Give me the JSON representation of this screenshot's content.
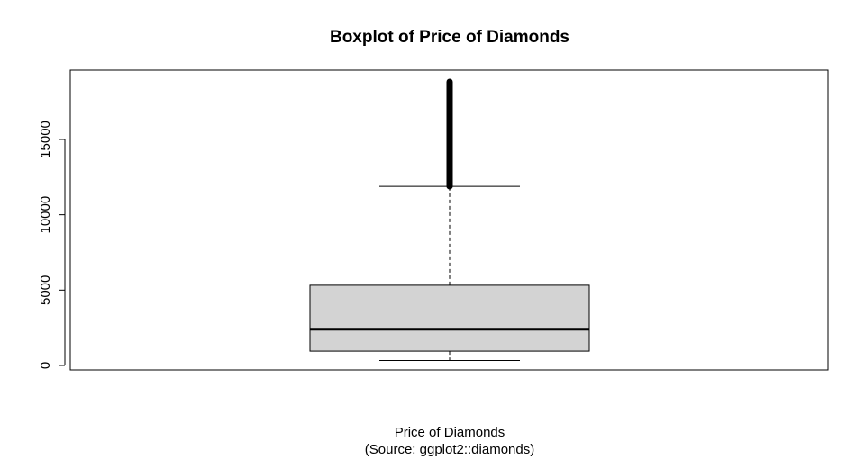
{
  "chart_data": {
    "type": "boxplot",
    "title": "Boxplot of Price of Diamonds",
    "xlabel": "Price of Diamonds",
    "xlabel_sub": "(Source: ggplot2::diamonds)",
    "ylabel": "",
    "ylim": [
      -300,
      19600
    ],
    "yticks": [
      0,
      5000,
      10000,
      15000
    ],
    "ytick_labels": [
      "0",
      "5000",
      "10000",
      "15000"
    ],
    "grid": false,
    "box": {
      "min": 326,
      "q1": 950,
      "median": 2401,
      "q3": 5324,
      "whisker_low": 326,
      "whisker_high": 11886,
      "outliers_range": [
        11886,
        18823
      ],
      "max": 18823
    },
    "colors": {
      "box_fill": "#d3d3d3",
      "line": "#000000",
      "background": "#ffffff"
    }
  }
}
